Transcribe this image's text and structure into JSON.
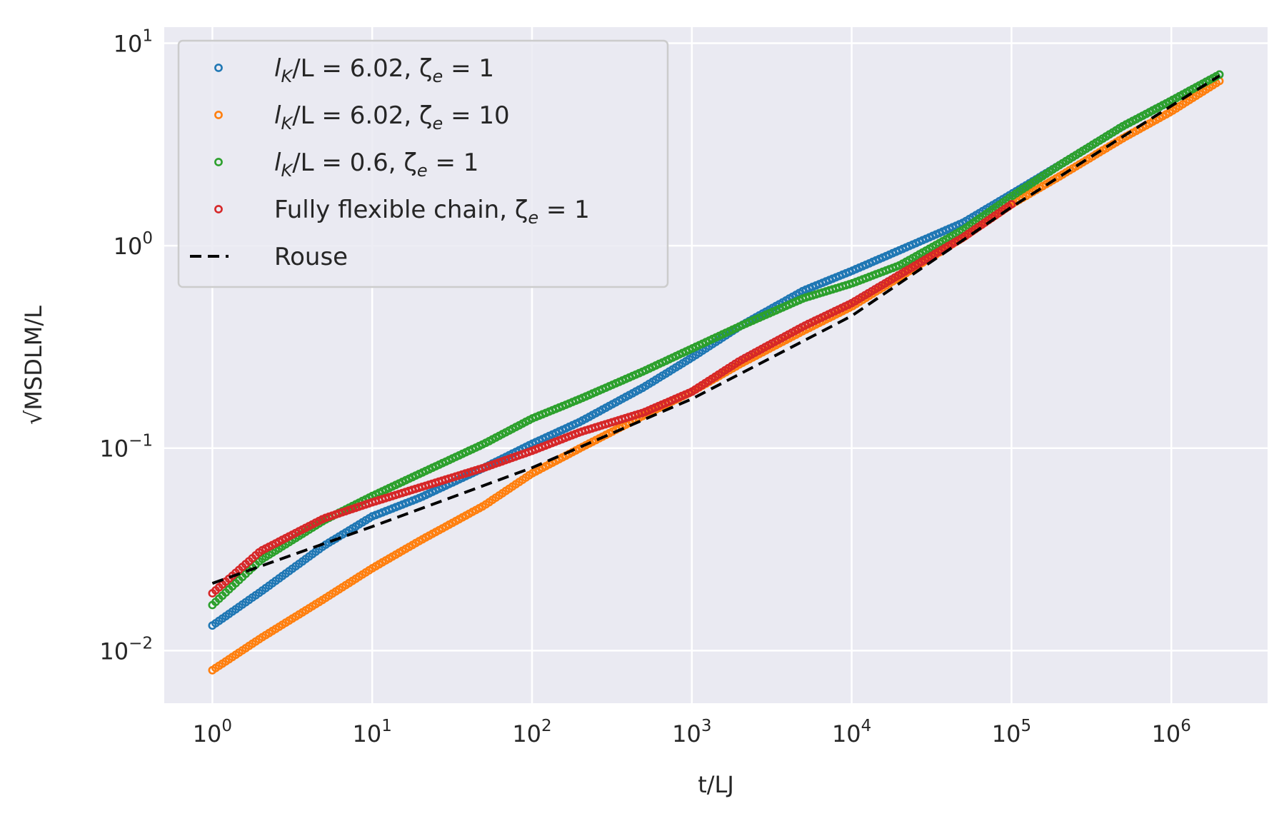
{
  "chart_data": {
    "type": "scatter",
    "xlabel": "t/LJ",
    "ylabel": "√MSDLM/L",
    "xscale": "log",
    "yscale": "log",
    "xlim": [
      0.5,
      4000000
    ],
    "ylim": [
      0.0055,
      12
    ],
    "grid": true,
    "legend_position": "top-left",
    "xticks": [
      {
        "value": 1,
        "base": "10",
        "exp": "0"
      },
      {
        "value": 10,
        "base": "10",
        "exp": "1"
      },
      {
        "value": 100,
        "base": "10",
        "exp": "2"
      },
      {
        "value": 1000,
        "base": "10",
        "exp": "3"
      },
      {
        "value": 10000,
        "base": "10",
        "exp": "4"
      },
      {
        "value": 100000,
        "base": "10",
        "exp": "5"
      },
      {
        "value": 1000000,
        "base": "10",
        "exp": "6"
      }
    ],
    "yticks": [
      {
        "value": 0.01,
        "base": "10",
        "exp": "−2"
      },
      {
        "value": 0.1,
        "base": "10",
        "exp": "−1"
      },
      {
        "value": 1,
        "base": "10",
        "exp": "0"
      },
      {
        "value": 10,
        "base": "10",
        "exp": "1"
      }
    ],
    "series": [
      {
        "name": "lK/L = 6.02, ζe = 1",
        "label_parts": {
          "pre": "l",
          "sub1": "K",
          "mid": "/L = 6.02, ζ",
          "sub2": "e",
          "post": " = 1"
        },
        "color": "#1f77b4",
        "marker": "open-circle",
        "points": [
          [
            1,
            0.0133
          ],
          [
            2,
            0.0195
          ],
          [
            5,
            0.033
          ],
          [
            10,
            0.046
          ],
          [
            20,
            0.057
          ],
          [
            50,
            0.08
          ],
          [
            100,
            0.105
          ],
          [
            200,
            0.135
          ],
          [
            500,
            0.2
          ],
          [
            1000,
            0.28
          ],
          [
            2000,
            0.4
          ],
          [
            5000,
            0.6
          ],
          [
            10000,
            0.75
          ],
          [
            20000,
            0.95
          ],
          [
            50000,
            1.3
          ],
          [
            100000,
            1.8
          ],
          [
            200000,
            2.5
          ],
          [
            500000,
            3.9
          ],
          [
            1000000,
            5.2
          ],
          [
            2000000,
            7.0
          ]
        ]
      },
      {
        "name": "lK/L = 6.02, ζe = 10",
        "label_parts": {
          "pre": "l",
          "sub1": "K",
          "mid": "/L = 6.02, ζ",
          "sub2": "e",
          "post": " = 10"
        },
        "color": "#ff7f0e",
        "marker": "open-circle",
        "points": [
          [
            1,
            0.008
          ],
          [
            2,
            0.0115
          ],
          [
            5,
            0.018
          ],
          [
            10,
            0.0255
          ],
          [
            20,
            0.035
          ],
          [
            50,
            0.052
          ],
          [
            100,
            0.075
          ],
          [
            200,
            0.1
          ],
          [
            500,
            0.145
          ],
          [
            1000,
            0.19
          ],
          [
            2000,
            0.26
          ],
          [
            5000,
            0.38
          ],
          [
            10000,
            0.5
          ],
          [
            20000,
            0.7
          ],
          [
            50000,
            1.1
          ],
          [
            100000,
            1.6
          ],
          [
            200000,
            2.2
          ],
          [
            500000,
            3.4
          ],
          [
            1000000,
            4.6
          ],
          [
            2000000,
            6.5
          ]
        ]
      },
      {
        "name": "lK/L = 0.6, ζe = 1",
        "label_parts": {
          "pre": "l",
          "sub1": "K",
          "mid": "/L = 0.6, ζ",
          "sub2": "e",
          "post": " = 1"
        },
        "color": "#2ca02c",
        "marker": "open-circle",
        "points": [
          [
            1,
            0.0168
          ],
          [
            2,
            0.028
          ],
          [
            5,
            0.044
          ],
          [
            10,
            0.058
          ],
          [
            20,
            0.075
          ],
          [
            50,
            0.105
          ],
          [
            100,
            0.14
          ],
          [
            200,
            0.175
          ],
          [
            500,
            0.24
          ],
          [
            1000,
            0.31
          ],
          [
            2000,
            0.4
          ],
          [
            5000,
            0.55
          ],
          [
            10000,
            0.65
          ],
          [
            20000,
            0.8
          ],
          [
            50000,
            1.2
          ],
          [
            100000,
            1.75
          ],
          [
            200000,
            2.5
          ],
          [
            500000,
            3.9
          ],
          [
            1000000,
            5.2
          ],
          [
            2000000,
            7.0
          ]
        ]
      },
      {
        "name": "Fully flexible chain, ζe = 1",
        "label_parts": {
          "pre": "Fully flexible chain, ζ",
          "sub1": "",
          "mid": "",
          "sub2": "e",
          "post": " = 1"
        },
        "color": "#d62728",
        "marker": "open-circle",
        "points": [
          [
            1,
            0.0192
          ],
          [
            2,
            0.031
          ],
          [
            5,
            0.045
          ],
          [
            10,
            0.054
          ],
          [
            20,
            0.064
          ],
          [
            50,
            0.08
          ],
          [
            100,
            0.097
          ],
          [
            200,
            0.12
          ],
          [
            500,
            0.15
          ],
          [
            1000,
            0.19
          ],
          [
            2000,
            0.27
          ],
          [
            5000,
            0.4
          ],
          [
            10000,
            0.52
          ],
          [
            20000,
            0.72
          ],
          [
            50000,
            1.1
          ],
          [
            100000,
            1.6
          ]
        ]
      },
      {
        "name": "Rouse",
        "color": "#000000",
        "marker": "dashed-line",
        "points": [
          [
            1,
            0.0215
          ],
          [
            10,
            0.041
          ],
          [
            100,
            0.08
          ],
          [
            1000,
            0.175
          ],
          [
            10000,
            0.45
          ],
          [
            100000,
            1.55
          ],
          [
            1000000,
            4.9
          ],
          [
            2000000,
            6.9
          ]
        ]
      }
    ]
  }
}
